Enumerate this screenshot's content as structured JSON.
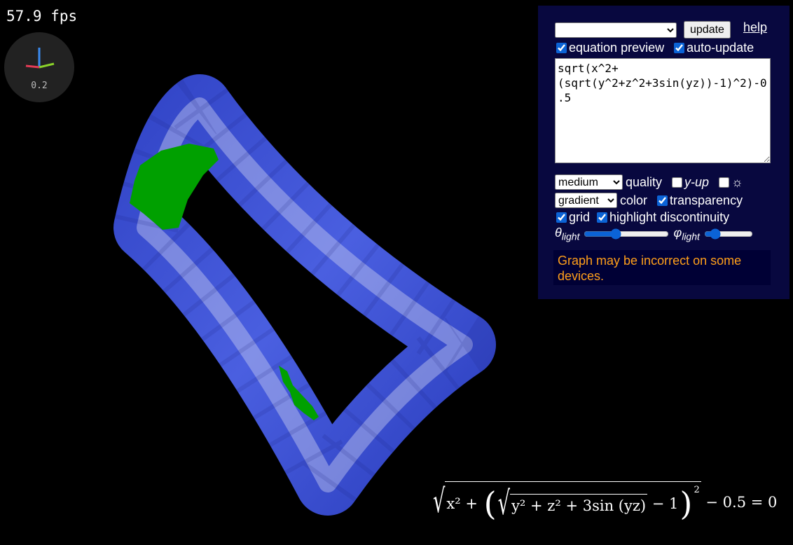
{
  "fps": "57.9 fps",
  "gizmo_label": "0.2",
  "panel": {
    "update_button": "update",
    "help_link": "help",
    "equation_preview": {
      "label": "equation preview",
      "checked": true
    },
    "auto_update": {
      "label": "auto-update",
      "checked": true
    },
    "equation_input": "sqrt(x^2+(sqrt(y^2+z^2+3sin(yz))-1)^2)-0.5",
    "quality_select": "medium",
    "quality_label": "quality",
    "y_up": {
      "label": "y-up",
      "checked": false
    },
    "light_toggle": {
      "label": "☼",
      "checked": false
    },
    "color_select": "gradient",
    "color_label": "color",
    "transparency": {
      "label": "transparency",
      "checked": true
    },
    "grid": {
      "label": "grid",
      "checked": true
    },
    "highlight_discontinuity": {
      "label": "highlight discontinuity",
      "checked": true
    },
    "theta_light": {
      "symbol": "θ",
      "subscript": "light",
      "position": 0.35
    },
    "phi_light": {
      "symbol": "φ",
      "subscript": "light",
      "position": 0.15
    },
    "warning": "Graph may be incorrect on some devices."
  },
  "equation_render": {
    "outer_start": "x² + ",
    "left_paren": "(",
    "inner_radicand": "y² + z² + 3sin (yz)",
    "minus_one": " − 1",
    "right_paren": ")",
    "exponent": "2",
    "tail": " − 0.5 = 0"
  }
}
